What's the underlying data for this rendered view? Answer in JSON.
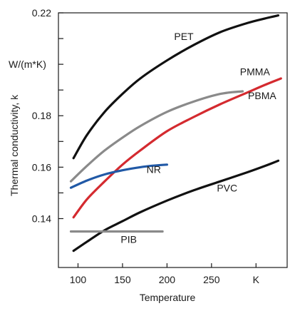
{
  "chart_data": {
    "type": "line",
    "title": "",
    "xlabel": "Temperature",
    "ylabel": "Thermal conductivity, k",
    "yunit": "W/(m*K)",
    "xunit_tick": "K",
    "xlim": [
      78,
      335
    ],
    "ylim": [
      0.121,
      0.22
    ],
    "xticks": [
      100,
      150,
      200,
      250
    ],
    "yticks": [
      0.14,
      0.16,
      0.18,
      0.22
    ],
    "yticks_minor": [
      0.15,
      0.17,
      0.19,
      0.2,
      0.21
    ],
    "ytick_labels": [
      "0.14",
      "0.16",
      "0.18",
      "0.22"
    ],
    "grid": false,
    "series": [
      {
        "name": "PET",
        "color": "#111111",
        "x": [
          95,
          110,
          130,
          150,
          170,
          200,
          230,
          260,
          290,
          310,
          325
        ],
        "y": [
          0.1635,
          0.1725,
          0.1815,
          0.1885,
          0.1945,
          0.2015,
          0.2075,
          0.2125,
          0.216,
          0.2178,
          0.219
        ]
      },
      {
        "name": "PMMA",
        "color": "#d42a2f",
        "x": [
          95,
          110,
          130,
          150,
          170,
          200,
          230,
          260,
          290,
          310,
          328
        ],
        "y": [
          0.1405,
          0.1475,
          0.1545,
          0.161,
          0.1665,
          0.174,
          0.1795,
          0.1845,
          0.189,
          0.192,
          0.1945
        ]
      },
      {
        "name": "PBMA",
        "color": "#8a8a8a",
        "x": [
          92,
          110,
          130,
          150,
          170,
          200,
          230,
          260,
          285
        ],
        "y": [
          0.1545,
          0.1605,
          0.1665,
          0.1715,
          0.176,
          0.1815,
          0.1855,
          0.1885,
          0.1895
        ]
      },
      {
        "name": "NR",
        "color": "#2159a6",
        "x": [
          92,
          110,
          130,
          150,
          170,
          185,
          200
        ],
        "y": [
          0.152,
          0.1548,
          0.1572,
          0.1588,
          0.16,
          0.1606,
          0.161
        ]
      },
      {
        "name": "PVC",
        "color": "#111111",
        "x": [
          95,
          110,
          130,
          150,
          170,
          200,
          230,
          260,
          290,
          310,
          325
        ],
        "y": [
          0.1275,
          0.131,
          0.1355,
          0.139,
          0.1425,
          0.147,
          0.151,
          0.1545,
          0.158,
          0.1605,
          0.1625
        ]
      },
      {
        "name": "PIB",
        "color": "#8a8a8a",
        "x": [
          92,
          195
        ],
        "y": [
          0.135,
          0.135
        ]
      }
    ],
    "annotations": [
      {
        "text": "PET",
        "x": 208,
        "y": 0.2095
      },
      {
        "text": "PMMA",
        "x": 282,
        "y": 0.1957
      },
      {
        "text": "PBMA",
        "x": 291,
        "y": 0.1865
      },
      {
        "text": "NR",
        "x": 177,
        "y": 0.1578
      },
      {
        "text": "PVC",
        "x": 256,
        "y": 0.1505
      },
      {
        "text": "PIB",
        "x": 148,
        "y": 0.1305
      }
    ]
  }
}
